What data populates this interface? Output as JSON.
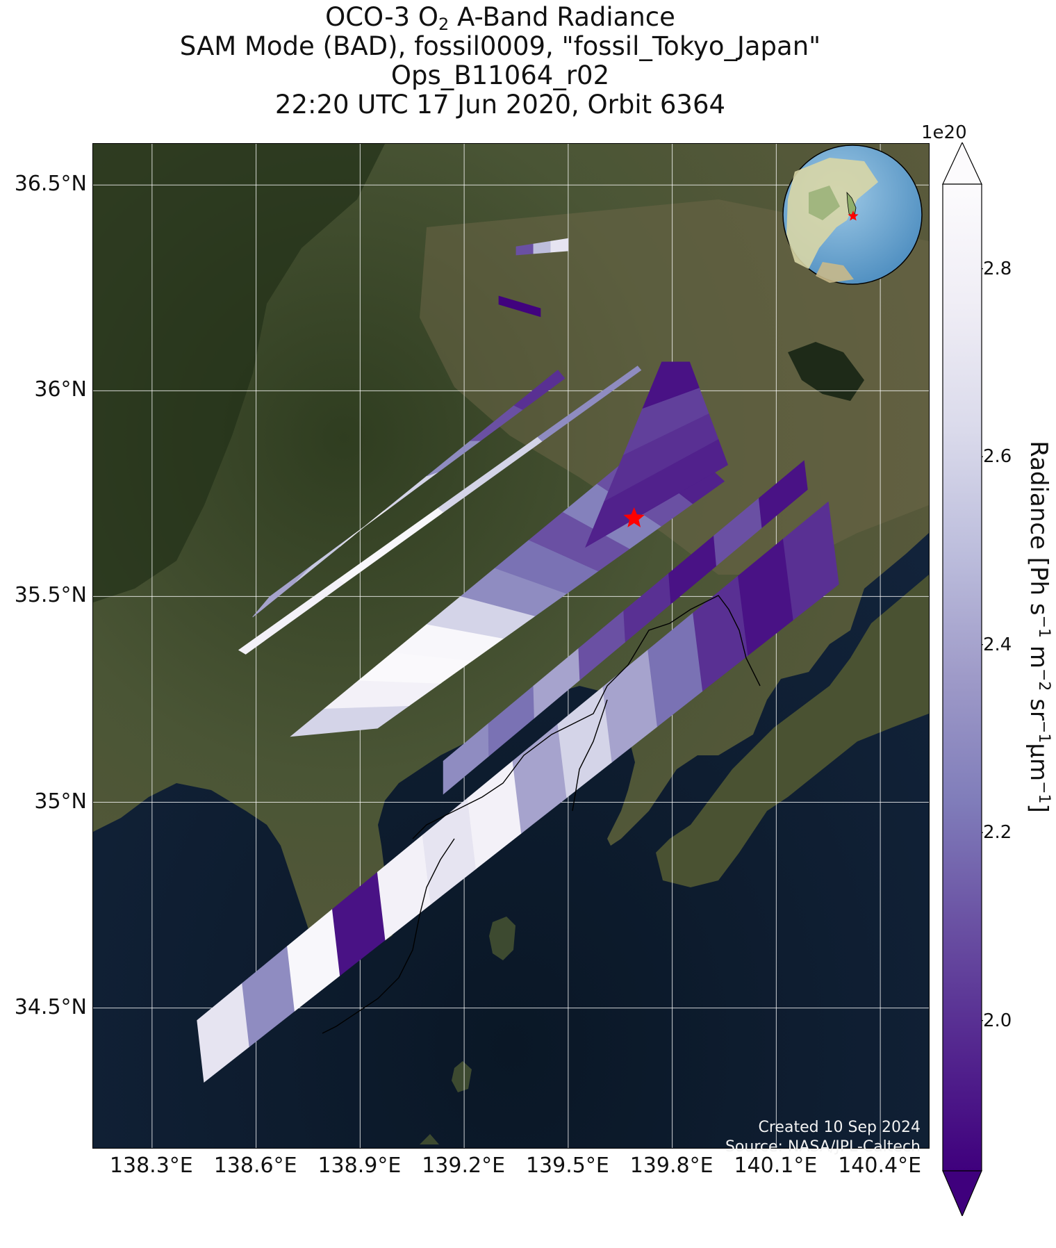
{
  "title": {
    "line1_prefix": "OCO-3 O",
    "line1_sub": "2",
    "line1_suffix": " A-Band Radiance",
    "line2": "SAM Mode (BAD), fossil0009, \"fossil_Tokyo_Japan\"",
    "line3": "Ops_B11064_r02",
    "line4": "22:20 UTC 17 Jun 2020, Orbit 6364"
  },
  "credits": {
    "created": "Created 10 Sep 2024",
    "source": "Source: NASA/JPL-Caltech"
  },
  "colorbar": {
    "exponent_label": "1e20",
    "label_parts": [
      "Radiance [Ph s",
      "−1",
      " m",
      "−2",
      " sr",
      "−1",
      "μm",
      "−1",
      "]"
    ],
    "ticks": [
      "2.0",
      "2.2",
      "2.4",
      "2.6",
      "2.8"
    ],
    "tick_values": [
      2.0,
      2.2,
      2.4,
      2.6,
      2.8
    ],
    "range": [
      1.84,
      2.89
    ],
    "extend": "both",
    "colors": [
      "#3f007d",
      "#54278f",
      "#6a51a3",
      "#807dba",
      "#9e9ac8",
      "#bcbddc",
      "#dadaeb",
      "#efedf5",
      "#fcfbfd"
    ]
  },
  "colors": {
    "ocean": "#0d1a2a",
    "land": "#3e4a2c",
    "coastline": "#000000",
    "target_star": "#ff0000",
    "gridline": "#ffffff"
  },
  "chart_data": {
    "type": "heatmap",
    "projection": "lon-lat map with satellite background",
    "xlabel": "",
    "ylabel": "",
    "xlim": [
      138.13,
      140.54
    ],
    "ylim": [
      34.16,
      36.6
    ],
    "xticks": [
      138.3,
      138.6,
      138.9,
      139.2,
      139.5,
      139.8,
      140.1,
      140.4
    ],
    "xtick_labels": [
      "138.3°E",
      "138.6°E",
      "138.9°E",
      "139.2°E",
      "139.5°E",
      "139.8°E",
      "140.1°E",
      "140.4°E"
    ],
    "yticks": [
      34.5,
      35.0,
      35.5,
      36.0,
      36.5
    ],
    "ytick_labels": [
      "34.5°N",
      "35°N",
      "35.5°N",
      "36°N",
      "36.5°N"
    ],
    "grid": true,
    "colormap": "Purples_r",
    "value_units": "1e20 Ph s-1 m-2 sr-1 μm-1",
    "target": {
      "lon": 139.69,
      "lat": 35.69,
      "marker": "star"
    },
    "inset_globe": {
      "center_lon": 139.69,
      "center_lat": 35.69,
      "position": "top-right"
    },
    "swaths": [
      {
        "corners": [
          [
            138.59,
            35.45
          ],
          [
            139.47,
            36.05
          ],
          [
            139.49,
            36.03
          ],
          [
            138.64,
            35.5
          ]
        ],
        "values": [
          2.4,
          2.55,
          2.75,
          2.6,
          2.3,
          2.1,
          2.0
        ]
      },
      {
        "corners": [
          [
            138.55,
            35.37
          ],
          [
            139.7,
            36.06
          ],
          [
            139.71,
            36.05
          ],
          [
            138.57,
            35.36
          ]
        ],
        "values": [
          2.8,
          2.85,
          2.6,
          2.3
        ]
      },
      {
        "corners": [
          [
            138.7,
            35.16
          ],
          [
            139.78,
            35.91
          ],
          [
            139.95,
            35.78
          ],
          [
            138.95,
            35.18
          ]
        ],
        "values": [
          2.6,
          2.8,
          2.87,
          2.85,
          2.6,
          2.3,
          2.2,
          2.1,
          2.25,
          2.1,
          1.95
        ]
      },
      {
        "corners": [
          [
            139.55,
            35.62
          ],
          [
            139.77,
            36.07
          ],
          [
            139.85,
            36.07
          ],
          [
            139.96,
            35.82
          ]
        ],
        "values": [
          1.95,
          2.0,
          2.05,
          1.9
        ]
      },
      {
        "corners": [
          [
            139.14,
            35.1
          ],
          [
            140.18,
            35.83
          ],
          [
            140.19,
            35.76
          ],
          [
            139.14,
            35.02
          ]
        ],
        "values": [
          2.3,
          2.2,
          2.4,
          2.1,
          2.0,
          1.9,
          2.1,
          1.9
        ]
      },
      {
        "corners": [
          [
            138.43,
            34.47
          ],
          [
            140.25,
            35.73
          ],
          [
            140.28,
            35.53
          ],
          [
            138.45,
            34.32
          ]
        ],
        "values": [
          2.7,
          2.3,
          2.85,
          1.9,
          2.8,
          2.7,
          2.8,
          2.4,
          2.6,
          2.4,
          2.2,
          2.0,
          1.9,
          2.0
        ]
      },
      {
        "corners": [
          [
            139.35,
            36.35
          ],
          [
            139.5,
            36.37
          ],
          [
            139.5,
            36.34
          ],
          [
            139.35,
            36.33
          ]
        ],
        "values": [
          2.1,
          2.5,
          2.7
        ]
      },
      {
        "corners": [
          [
            139.3,
            36.23
          ],
          [
            139.42,
            36.2
          ],
          [
            139.42,
            36.18
          ],
          [
            139.3,
            36.21
          ]
        ],
        "values": [
          1.85
        ]
      }
    ]
  }
}
